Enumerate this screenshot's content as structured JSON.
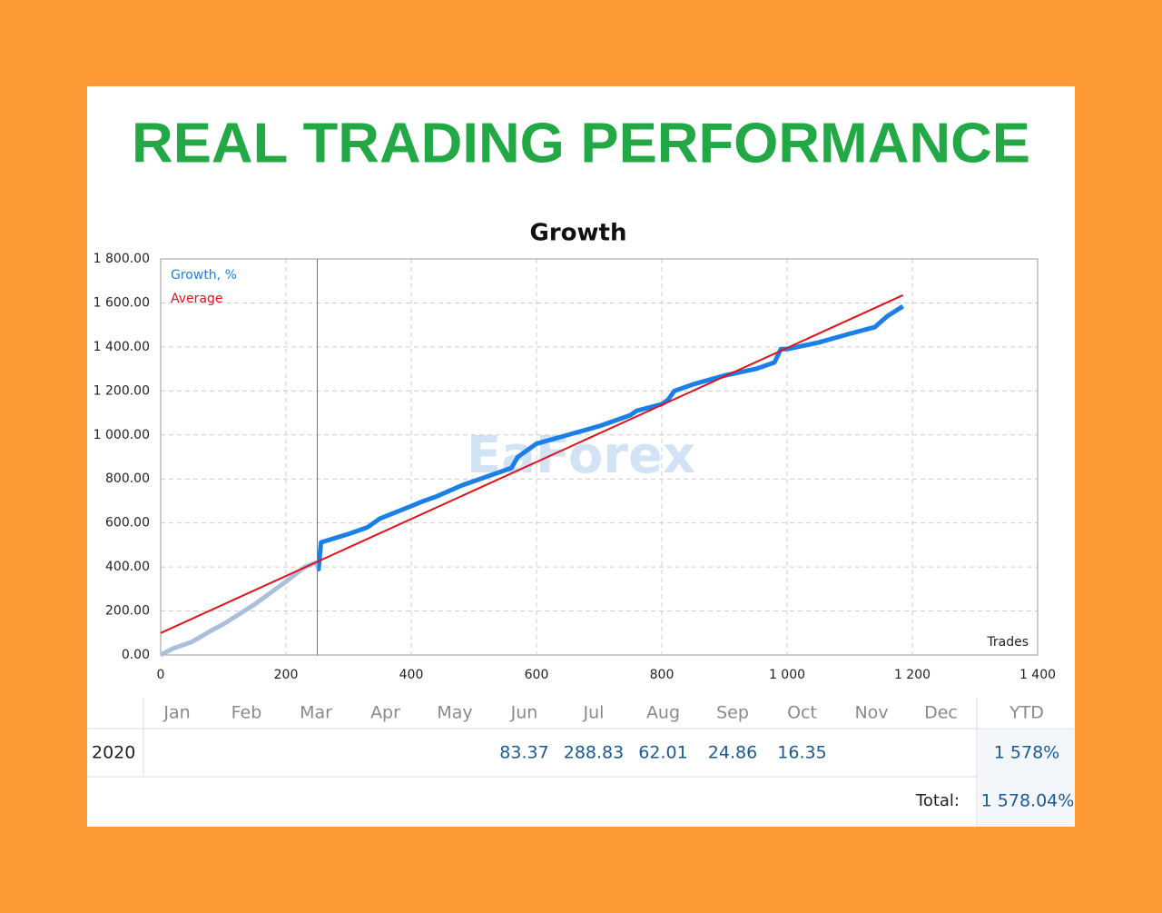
{
  "heading": "REAL TRADING PERFORMANCE",
  "watermark": "EaForex",
  "chart_data": {
    "type": "line",
    "title": "Growth",
    "x_label": "Trades",
    "xlim": [
      0,
      1400
    ],
    "xticks": [
      0,
      200,
      400,
      600,
      800,
      {
        "value": 1000,
        "label": "1 000"
      },
      {
        "value": 1200,
        "label": "1 200"
      },
      {
        "value": 1400,
        "label": "1 400"
      }
    ],
    "ylim": [
      0,
      1800
    ],
    "yticks": [
      {
        "value": 0,
        "label": "0.00"
      },
      {
        "value": 200,
        "label": "200.00"
      },
      {
        "value": 400,
        "label": "400.00"
      },
      {
        "value": 600,
        "label": "600.00"
      },
      {
        "value": 800,
        "label": "800.00"
      },
      {
        "value": 1000,
        "label": "1 000.00"
      },
      {
        "value": 1200,
        "label": "1 200.00"
      },
      {
        "value": 1400,
        "label": "1 400.00"
      },
      {
        "value": 1600,
        "label": "1 600.00"
      },
      {
        "value": 1800,
        "label": "1 800.00"
      }
    ],
    "grid": true,
    "legend": "top-left",
    "vline": 250,
    "series": [
      {
        "name": "Growth, %",
        "color": "#1a7fe8",
        "early_color": "#a9bfdc",
        "x": [
          0,
          20,
          50,
          80,
          100,
          150,
          200,
          230,
          248,
          252,
          256,
          300,
          330,
          350,
          400,
          420,
          440,
          480,
          500,
          560,
          570,
          600,
          650,
          700,
          750,
          760,
          800,
          810,
          820,
          850,
          900,
          950,
          980,
          990,
          1000,
          1050,
          1100,
          1140,
          1160,
          1185
        ],
        "values": [
          0,
          30,
          60,
          110,
          140,
          230,
          334,
          400,
          420,
          390,
          512,
          550,
          580,
          620,
          677,
          700,
          720,
          770,
          790,
          850,
          900,
          960,
          1000,
          1040,
          1090,
          1110,
          1140,
          1160,
          1200,
          1230,
          1270,
          1300,
          1330,
          1390,
          1390,
          1420,
          1460,
          1490,
          1540,
          1585
        ]
      },
      {
        "name": "Average",
        "color": "#e0121b",
        "x": [
          0,
          1185
        ],
        "values": [
          100,
          1635
        ]
      }
    ]
  },
  "table": {
    "months": [
      "Jan",
      "Feb",
      "Mar",
      "Apr",
      "May",
      "Jun",
      "Jul",
      "Aug",
      "Sep",
      "Oct",
      "Nov",
      "Dec"
    ],
    "ytd_header": "YTD",
    "rows": [
      {
        "year": 2020,
        "months": [
          null,
          null,
          null,
          null,
          null,
          83.37,
          288.83,
          62.01,
          24.86,
          16.35,
          null,
          null
        ],
        "ytd": "1 578%"
      }
    ],
    "total_label": "Total:",
    "total": "1 578.04%"
  }
}
